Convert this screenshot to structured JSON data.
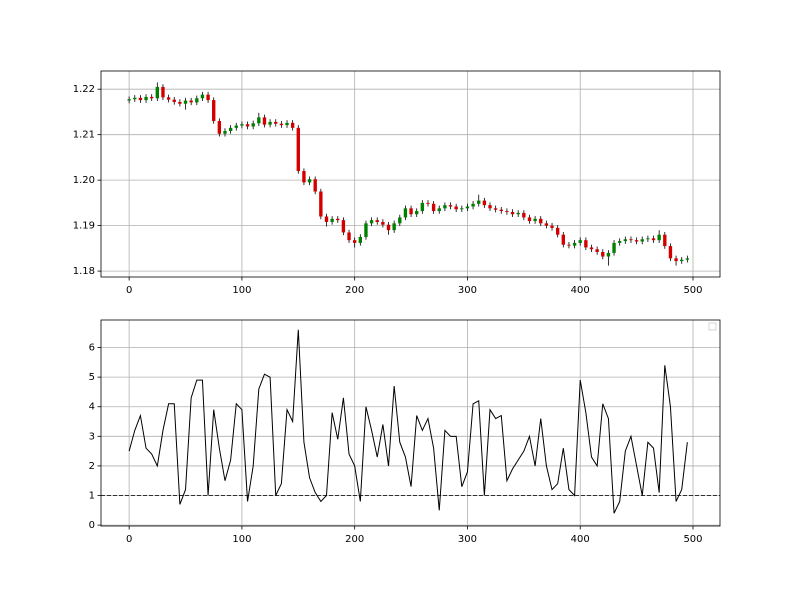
{
  "chart_data": [
    {
      "type": "candlestick",
      "x": [
        0,
        5,
        10,
        15,
        20,
        25,
        30,
        35,
        40,
        45,
        50,
        55,
        60,
        65,
        70,
        75,
        80,
        85,
        90,
        95,
        100,
        105,
        110,
        115,
        120,
        125,
        130,
        135,
        140,
        145,
        150,
        155,
        160,
        165,
        170,
        175,
        180,
        185,
        190,
        195,
        200,
        205,
        210,
        215,
        220,
        225,
        230,
        235,
        240,
        245,
        250,
        255,
        260,
        265,
        270,
        275,
        280,
        285,
        290,
        295,
        300,
        305,
        310,
        315,
        320,
        325,
        330,
        335,
        340,
        345,
        350,
        355,
        360,
        365,
        370,
        375,
        380,
        385,
        390,
        395,
        400,
        405,
        410,
        415,
        420,
        425,
        430,
        435,
        440,
        445,
        450,
        455,
        460,
        465,
        470,
        475,
        480,
        485,
        490,
        495
      ],
      "open": [
        1.2175,
        1.2178,
        1.2181,
        1.2176,
        1.2183,
        1.218,
        1.2205,
        1.2182,
        1.2177,
        1.2172,
        1.2168,
        1.2175,
        1.2171,
        1.218,
        1.2188,
        1.2176,
        1.213,
        1.2102,
        1.2108,
        1.2115,
        1.212,
        1.2123,
        1.2118,
        1.2125,
        1.2138,
        1.2122,
        1.2128,
        1.2124,
        1.2121,
        1.2126,
        1.2115,
        1.202,
        1.1995,
        1.2002,
        1.1975,
        1.192,
        1.1908,
        1.1915,
        1.1912,
        1.1885,
        1.1868,
        1.1862,
        1.1875,
        1.1905,
        1.1912,
        1.1908,
        1.1902,
        1.189,
        1.1905,
        1.1918,
        1.1938,
        1.1925,
        1.1932,
        1.195,
        1.1948,
        1.1932,
        1.1938,
        1.1945,
        1.1942,
        1.1936,
        1.1938,
        1.1942,
        1.1948,
        1.1955,
        1.1945,
        1.1938,
        1.1935,
        1.1932,
        1.193,
        1.1925,
        1.1928,
        1.1918,
        1.191,
        1.1915,
        1.1905,
        1.19,
        1.1895,
        1.188,
        1.1858,
        1.1856,
        1.1862,
        1.1868,
        1.1852,
        1.1848,
        1.1842,
        1.1832,
        1.184,
        1.1862,
        1.1866,
        1.187,
        1.1868,
        1.1865,
        1.187,
        1.1872,
        1.1868,
        1.188,
        1.1855,
        1.1828,
        1.1822,
        1.1825
      ],
      "high": [
        1.2184,
        1.2187,
        1.2187,
        1.2189,
        1.2189,
        1.2215,
        1.2211,
        1.2188,
        1.2183,
        1.2178,
        1.2181,
        1.2181,
        1.2186,
        1.2194,
        1.2194,
        1.2182,
        1.2136,
        1.2114,
        1.2121,
        1.2126,
        1.2129,
        1.2129,
        1.2131,
        1.2148,
        1.2144,
        1.2134,
        1.2134,
        1.213,
        1.2132,
        1.2132,
        1.2121,
        1.2026,
        1.2008,
        1.2008,
        1.1981,
        1.1926,
        1.1921,
        1.1921,
        1.1918,
        1.1891,
        1.1874,
        1.1881,
        1.1911,
        1.1918,
        1.1918,
        1.1914,
        1.1908,
        1.1911,
        1.1924,
        1.1944,
        1.1944,
        1.1938,
        1.1956,
        1.1956,
        1.1954,
        1.1944,
        1.1951,
        1.1951,
        1.1948,
        1.1944,
        1.1948,
        1.1954,
        1.1968,
        1.1961,
        1.1951,
        1.1944,
        1.1941,
        1.1938,
        1.1936,
        1.1934,
        1.1934,
        1.1924,
        1.1921,
        1.1921,
        1.1911,
        1.1906,
        1.1901,
        1.1886,
        1.1864,
        1.1868,
        1.1874,
        1.1874,
        1.1858,
        1.1854,
        1.1848,
        1.1846,
        1.1868,
        1.1872,
        1.1876,
        1.1876,
        1.1874,
        1.1876,
        1.1878,
        1.1878,
        1.189,
        1.1886,
        1.1861,
        1.1834,
        1.1831,
        1.1834
      ],
      "low": [
        1.2169,
        1.2172,
        1.217,
        1.217,
        1.2174,
        1.2174,
        1.2176,
        1.2171,
        1.2166,
        1.2162,
        1.2155,
        1.2165,
        1.2165,
        1.2174,
        1.217,
        1.2124,
        1.2096,
        1.2096,
        1.2102,
        1.2109,
        1.2114,
        1.2112,
        1.2112,
        1.2119,
        1.2116,
        1.2116,
        1.2118,
        1.2115,
        1.2115,
        1.2109,
        1.2014,
        1.1989,
        1.1989,
        1.1969,
        1.1914,
        1.1898,
        1.1902,
        1.1906,
        1.1879,
        1.1862,
        1.1852,
        1.1856,
        1.1869,
        1.1899,
        1.1902,
        1.1896,
        1.188,
        1.1884,
        1.1899,
        1.1912,
        1.1919,
        1.1919,
        1.1926,
        1.1942,
        1.1926,
        1.1926,
        1.1932,
        1.1936,
        1.193,
        1.193,
        1.1932,
        1.1936,
        1.1942,
        1.1939,
        1.1932,
        1.1929,
        1.1926,
        1.1924,
        1.1919,
        1.1919,
        1.1912,
        1.1904,
        1.1904,
        1.1899,
        1.1894,
        1.1889,
        1.1874,
        1.1852,
        1.185,
        1.185,
        1.1856,
        1.1846,
        1.1842,
        1.1836,
        1.1826,
        1.1812,
        1.1834,
        1.1856,
        1.186,
        1.1862,
        1.1859,
        1.1859,
        1.1864,
        1.1862,
        1.1862,
        1.1849,
        1.1822,
        1.1812,
        1.1816,
        1.1819
      ],
      "close": [
        1.2178,
        1.2181,
        1.2176,
        1.2183,
        1.218,
        1.2205,
        1.2182,
        1.2177,
        1.2172,
        1.2168,
        1.2175,
        1.2171,
        1.218,
        1.2188,
        1.2176,
        1.213,
        1.2102,
        1.2108,
        1.2115,
        1.212,
        1.2123,
        1.2118,
        1.2125,
        1.2138,
        1.2122,
        1.2128,
        1.2124,
        1.2121,
        1.2126,
        1.2115,
        1.202,
        1.1995,
        1.2002,
        1.1975,
        1.192,
        1.1908,
        1.1915,
        1.1912,
        1.1885,
        1.1868,
        1.1862,
        1.1875,
        1.1905,
        1.1912,
        1.1908,
        1.1902,
        1.189,
        1.1905,
        1.1918,
        1.1938,
        1.1925,
        1.1932,
        1.195,
        1.1948,
        1.1932,
        1.1938,
        1.1945,
        1.1942,
        1.1936,
        1.1938,
        1.1942,
        1.1948,
        1.1955,
        1.1945,
        1.1938,
        1.1935,
        1.1932,
        1.193,
        1.1925,
        1.1928,
        1.1918,
        1.191,
        1.1915,
        1.1905,
        1.19,
        1.1895,
        1.188,
        1.1858,
        1.1856,
        1.1862,
        1.1868,
        1.1852,
        1.1848,
        1.1842,
        1.1832,
        1.184,
        1.1862,
        1.1866,
        1.187,
        1.1868,
        1.1865,
        1.187,
        1.1872,
        1.1868,
        1.188,
        1.1855,
        1.1828,
        1.1822,
        1.1825,
        1.1828
      ],
      "up_color": "#008000",
      "down_color": "#d40000",
      "wick_color": "#000000",
      "xlim": [
        -24.95,
        523.95
      ],
      "ylim": [
        1.1787,
        1.224
      ],
      "xticks": [
        0,
        100,
        200,
        300,
        400,
        500
      ],
      "yticks": [
        1.18,
        1.19,
        {
          "value": 1.2,
          "label": "1.20"
        },
        1.21,
        1.22
      ],
      "grid": true
    },
    {
      "type": "line",
      "x": [
        0,
        5,
        10,
        15,
        20,
        25,
        30,
        35,
        40,
        45,
        50,
        55,
        60,
        65,
        70,
        75,
        80,
        85,
        90,
        95,
        100,
        105,
        110,
        115,
        120,
        125,
        130,
        135,
        140,
        145,
        150,
        155,
        160,
        165,
        170,
        175,
        180,
        185,
        190,
        195,
        200,
        205,
        210,
        215,
        220,
        225,
        230,
        235,
        240,
        245,
        250,
        255,
        260,
        265,
        270,
        275,
        280,
        285,
        290,
        295,
        300,
        305,
        310,
        315,
        320,
        325,
        330,
        335,
        340,
        345,
        350,
        355,
        360,
        365,
        370,
        375,
        380,
        385,
        390,
        395,
        400,
        405,
        410,
        415,
        420,
        425,
        430,
        435,
        440,
        445,
        450,
        455,
        460,
        465,
        470,
        475,
        480,
        485,
        490,
        495
      ],
      "series": [
        {
          "color": "#000000",
          "values": [
            2.5,
            3.2,
            3.7,
            2.6,
            2.4,
            2.0,
            3.2,
            4.1,
            4.1,
            0.7,
            1.2,
            4.3,
            4.9,
            4.9,
            1.0,
            3.9,
            2.6,
            1.5,
            2.2,
            4.1,
            3.9,
            0.8,
            2.0,
            4.6,
            5.1,
            5.0,
            1.0,
            1.4,
            3.9,
            3.5,
            6.6,
            2.8,
            1.6,
            1.1,
            0.8,
            1.0,
            3.8,
            2.9,
            4.3,
            2.4,
            2.0,
            0.8,
            4.0,
            3.2,
            2.3,
            3.4,
            2.0,
            4.7,
            2.8,
            2.3,
            1.3,
            3.7,
            3.2,
            3.6,
            2.6,
            0.5,
            3.2,
            3.0,
            3.0,
            1.3,
            1.8,
            4.1,
            4.2,
            1.0,
            3.9,
            3.6,
            3.7,
            1.5,
            1.9,
            2.2,
            2.5,
            3.0,
            2.0,
            3.6,
            2.0,
            1.2,
            1.4,
            2.6,
            1.2,
            1.0,
            4.9,
            3.8,
            2.3,
            2.0,
            4.1,
            3.6,
            0.4,
            0.8,
            2.5,
            3.0,
            2.0,
            1.0,
            2.8,
            2.6,
            1.1,
            5.4,
            4.0,
            0.8,
            1.2,
            2.8
          ]
        }
      ],
      "hline": 1,
      "hline_color": "#000000",
      "xlim": [
        -24.95,
        523.95
      ],
      "ylim": [
        -0.03,
        6.93
      ],
      "xticks": [
        0,
        100,
        200,
        300,
        400,
        500
      ],
      "yticks": [
        0,
        1,
        2,
        3,
        4,
        5,
        6
      ],
      "grid": true,
      "legend": "upper right"
    }
  ]
}
